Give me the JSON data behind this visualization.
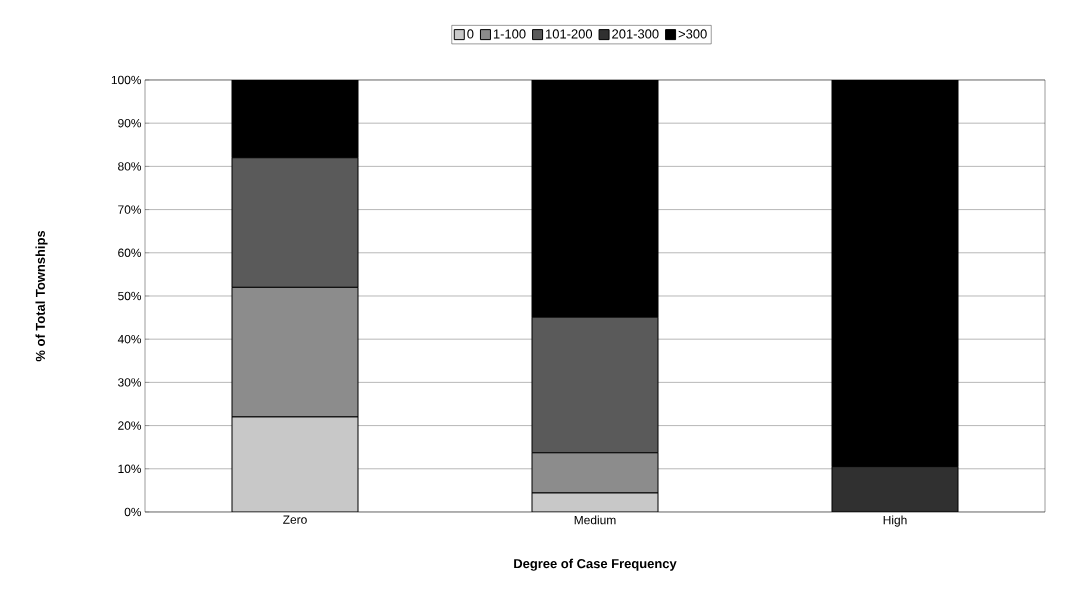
{
  "chart_data": {
    "type": "bar",
    "stacked": true,
    "xlabel": "Degree of Case Frequency",
    "ylabel": "% of Total Townships",
    "categories": [
      "Zero",
      "Medium",
      "High"
    ],
    "series": [
      {
        "name": "0",
        "color": "#c8c8c8",
        "values": [
          22,
          4.4,
          0
        ]
      },
      {
        "name": "1-100",
        "color": "#8c8c8c",
        "values": [
          30,
          9.3,
          0
        ]
      },
      {
        "name": "101-200",
        "color": "#5a5a5a",
        "values": [
          30,
          31.4,
          0
        ]
      },
      {
        "name": "201-300",
        "color": "#303030",
        "values": [
          0,
          0,
          10.5
        ]
      },
      {
        "name": ">300",
        "color": "#000000",
        "values": [
          18,
          54.9,
          89.5
        ]
      }
    ],
    "ylim": [
      0,
      100
    ],
    "yticks": [
      {
        "value": 0,
        "label": "0%"
      },
      {
        "value": 10,
        "label": "10%"
      },
      {
        "value": 20,
        "label": "20%"
      },
      {
        "value": 30,
        "label": "30%"
      },
      {
        "value": 40,
        "label": "40%"
      },
      {
        "value": 50,
        "label": "50%"
      },
      {
        "value": 60,
        "label": "60%"
      },
      {
        "value": 70,
        "label": "70%"
      },
      {
        "value": 80,
        "label": "80%"
      },
      {
        "value": 90,
        "label": "90%"
      },
      {
        "value": 100,
        "label": "100%"
      }
    ],
    "grid": "y",
    "legend": "top"
  }
}
